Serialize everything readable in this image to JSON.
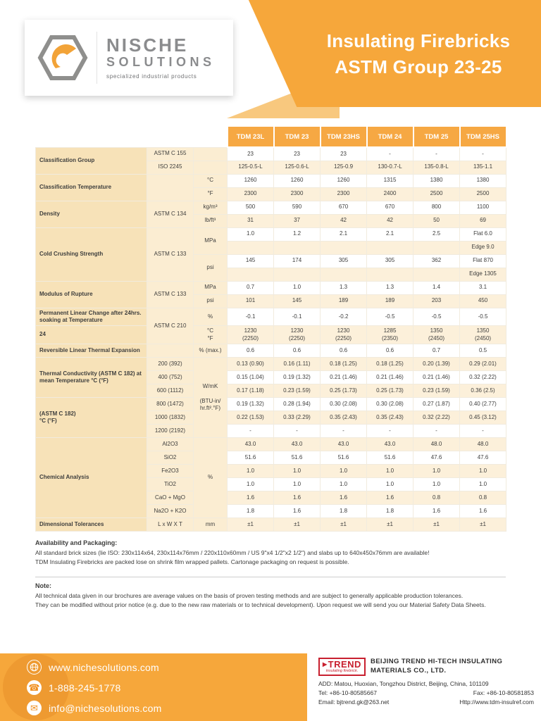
{
  "banner": {
    "title_line1": "Insulating Firebricks",
    "title_line2": "ASTM Group 23-25"
  },
  "logo": {
    "name_top": "NISCHE",
    "name_bottom": "SOLUTIONS",
    "tagline": "specialized industrial products"
  },
  "colors": {
    "orange": "#F6A73B",
    "orange_light": "#F8C87E",
    "orange_dark": "#EE9A31",
    "table_header": "#F6A843",
    "label_bg": "#F7E2B8",
    "std_bg": "#FBEDD2",
    "stripe_bg": "#FCF0DA",
    "trend_red": "#C8202F"
  },
  "table": {
    "products": [
      "TDM 23L",
      "TDM 23",
      "TDM 23HS",
      "TDM 24",
      "TDM 25",
      "TDM 25HS"
    ],
    "rows": [
      {
        "cells": [
          {
            "t": "Classification Group",
            "rs": 2
          },
          {
            "t": "ASTM C 155"
          },
          {
            "t": ""
          },
          {
            "t": "23"
          },
          {
            "t": "23"
          },
          {
            "t": "23"
          },
          {
            "t": "-"
          },
          {
            "t": "-"
          },
          {
            "t": "-"
          }
        ]
      },
      {
        "cells": [
          {
            "t": "ISO 2245"
          },
          {
            "t": ""
          },
          {
            "t": "125-0.5-L"
          },
          {
            "t": "125-0.6-L"
          },
          {
            "t": "125-0.9"
          },
          {
            "t": "130-0.7-L"
          },
          {
            "t": "135-0.8-L"
          },
          {
            "t": "135-1.1"
          }
        ]
      },
      {
        "cells": [
          {
            "t": "Classification Temperature",
            "rs": 2
          },
          {
            "t": "",
            "rs": 2
          },
          {
            "t": "°C"
          },
          {
            "t": "1260"
          },
          {
            "t": "1260"
          },
          {
            "t": "1260"
          },
          {
            "t": "1315"
          },
          {
            "t": "1380"
          },
          {
            "t": "1380"
          }
        ]
      },
      {
        "cells": [
          {
            "t": "°F"
          },
          {
            "t": "2300"
          },
          {
            "t": "2300"
          },
          {
            "t": "2300"
          },
          {
            "t": "2400"
          },
          {
            "t": "2500"
          },
          {
            "t": "2500"
          }
        ]
      },
      {
        "cells": [
          {
            "t": "Density",
            "rs": 2
          },
          {
            "t": "ASTM C 134",
            "rs": 2
          },
          {
            "t": "kg/m³"
          },
          {
            "t": "500"
          },
          {
            "t": "590"
          },
          {
            "t": "670"
          },
          {
            "t": "670"
          },
          {
            "t": "800"
          },
          {
            "t": "1100"
          }
        ]
      },
      {
        "cells": [
          {
            "t": "lb/ft³"
          },
          {
            "t": "31"
          },
          {
            "t": "37"
          },
          {
            "t": "42"
          },
          {
            "t": "42"
          },
          {
            "t": "50"
          },
          {
            "t": "69"
          }
        ]
      },
      {
        "cells": [
          {
            "t": "Cold Crushing Strength",
            "rs": 4
          },
          {
            "t": "ASTM C 133",
            "rs": 4
          },
          {
            "t": "MPa",
            "rs": 2
          },
          {
            "t": "1.0"
          },
          {
            "t": "1.2"
          },
          {
            "t": "2.1"
          },
          {
            "t": "2.1"
          },
          {
            "t": "2.5"
          },
          {
            "t": "Flat 6.0"
          }
        ]
      },
      {
        "cells": [
          {
            "t": ""
          },
          {
            "t": ""
          },
          {
            "t": ""
          },
          {
            "t": ""
          },
          {
            "t": ""
          },
          {
            "t": "Edge 9.0"
          }
        ]
      },
      {
        "cells": [
          {
            "t": "psi",
            "rs": 2
          },
          {
            "t": "145"
          },
          {
            "t": "174"
          },
          {
            "t": "305"
          },
          {
            "t": "305"
          },
          {
            "t": "362"
          },
          {
            "t": "Flat 870"
          }
        ]
      },
      {
        "cells": [
          {
            "t": ""
          },
          {
            "t": ""
          },
          {
            "t": ""
          },
          {
            "t": ""
          },
          {
            "t": ""
          },
          {
            "t": "Edge 1305"
          }
        ]
      },
      {
        "cells": [
          {
            "t": "Modulus of Rupture",
            "rs": 2
          },
          {
            "t": "ASTM C 133",
            "rs": 2
          },
          {
            "t": "MPa"
          },
          {
            "t": "0.7"
          },
          {
            "t": "1.0"
          },
          {
            "t": "1.3"
          },
          {
            "t": "1.3"
          },
          {
            "t": "1.4"
          },
          {
            "t": "3.1"
          }
        ]
      },
      {
        "cells": [
          {
            "t": "psi"
          },
          {
            "t": "101"
          },
          {
            "t": "145"
          },
          {
            "t": "189"
          },
          {
            "t": "189"
          },
          {
            "t": "203"
          },
          {
            "t": "450"
          }
        ]
      },
      {
        "cells": [
          {
            "t": "Permanent Linear Change after 24hrs. soaking at Temperature"
          },
          {
            "t": "ASTM C 210",
            "rs": 2
          },
          {
            "t": "%"
          },
          {
            "t": "-0.1"
          },
          {
            "t": "-0.1"
          },
          {
            "t": "-0.2"
          },
          {
            "t": "-0.5"
          },
          {
            "t": "-0.5"
          },
          {
            "t": "-0.5"
          }
        ]
      },
      {
        "cells": [
          {
            "t": "24"
          },
          {
            "t": [
              "°C",
              "°F"
            ]
          },
          {
            "t": [
              "1230",
              "(2250)"
            ]
          },
          {
            "t": [
              "1230",
              "(2250)"
            ]
          },
          {
            "t": [
              "1230",
              "(2250)"
            ]
          },
          {
            "t": [
              "1285",
              "(2350)"
            ]
          },
          {
            "t": [
              "1350",
              "(2450)"
            ]
          },
          {
            "t": [
              "1350",
              "(2450)"
            ]
          }
        ]
      },
      {
        "cells": [
          {
            "t": "Reversible Linear Thermal Expansion"
          },
          {
            "t": ""
          },
          {
            "t": "% (max.)"
          },
          {
            "t": "0.6"
          },
          {
            "t": "0.6"
          },
          {
            "t": "0.6"
          },
          {
            "t": "0.6"
          },
          {
            "t": "0.7"
          },
          {
            "t": "0.5"
          }
        ]
      },
      {
        "cells": [
          {
            "t": "Thermal Conductivity (ASTM C 182) at mean Temperature °C (°F)",
            "rs": 3
          },
          {
            "t": "200 (392)"
          },
          {
            "t": [
              "W/mK",
              "",
              "(BTU-in/",
              "hr.ft².°F)"
            ],
            "rs": 6
          },
          {
            "t": "0.13 (0.90)"
          },
          {
            "t": "0.16 (1.11)"
          },
          {
            "t": "0.18 (1.25)"
          },
          {
            "t": "0.18 (1.25)"
          },
          {
            "t": "0.20 (1.39)"
          },
          {
            "t": "0.29 (2.01)"
          }
        ]
      },
      {
        "cells": [
          {
            "t": "400 (752)"
          },
          {
            "t": "0.15 (1.04)"
          },
          {
            "t": "0.19 (1.32)"
          },
          {
            "t": "0.21 (1.46)"
          },
          {
            "t": "0.21 (1.46)"
          },
          {
            "t": "0.21 (1.46)"
          },
          {
            "t": "0.32 (2.22)"
          }
        ]
      },
      {
        "cells": [
          {
            "t": "600 (1112)"
          },
          {
            "t": "0.17 (1.18)"
          },
          {
            "t": "0.23 (1.59)"
          },
          {
            "t": "0.25 (1.73)"
          },
          {
            "t": "0.25 (1.73)"
          },
          {
            "t": "0.23 (1.59)"
          },
          {
            "t": "0.36 (2.5)"
          }
        ]
      },
      {
        "cells": [
          {
            "t": [
              "(ASTM C 182)",
              "°C (°F)"
            ],
            "rs": 3
          },
          {
            "t": "800 (1472)"
          },
          {
            "t": "0.19 (1.32)"
          },
          {
            "t": "0.28 (1.94)"
          },
          {
            "t": "0.30 (2.08)"
          },
          {
            "t": "0.30 (2.08)"
          },
          {
            "t": "0.27 (1.87)"
          },
          {
            "t": "0.40 (2.77)"
          }
        ]
      },
      {
        "cells": [
          {
            "t": "1000 (1832)"
          },
          {
            "t": "0.22 (1.53)"
          },
          {
            "t": "0.33 (2.29)"
          },
          {
            "t": "0.35 (2.43)"
          },
          {
            "t": "0.35 (2.43)"
          },
          {
            "t": "0.32 (2.22)"
          },
          {
            "t": "0.45 (3.12)"
          }
        ]
      },
      {
        "cells": [
          {
            "t": "1200 (2192)"
          },
          {
            "t": "-"
          },
          {
            "t": "-"
          },
          {
            "t": "-"
          },
          {
            "t": "-"
          },
          {
            "t": "-"
          },
          {
            "t": "-"
          }
        ]
      },
      {
        "cells": [
          {
            "t": "Chemical Analysis",
            "rs": 6
          },
          {
            "t": "Al2O3"
          },
          {
            "t": "%",
            "rs": 6
          },
          {
            "t": "43.0"
          },
          {
            "t": "43.0"
          },
          {
            "t": "43.0"
          },
          {
            "t": "43.0"
          },
          {
            "t": "48.0"
          },
          {
            "t": "48.0"
          }
        ]
      },
      {
        "cells": [
          {
            "t": "SiO2"
          },
          {
            "t": "51.6"
          },
          {
            "t": "51.6"
          },
          {
            "t": "51.6"
          },
          {
            "t": "51.6"
          },
          {
            "t": "47.6"
          },
          {
            "t": "47.6"
          }
        ]
      },
      {
        "cells": [
          {
            "t": "Fe2O3"
          },
          {
            "t": "1.0"
          },
          {
            "t": "1.0"
          },
          {
            "t": "1.0"
          },
          {
            "t": "1.0"
          },
          {
            "t": "1.0"
          },
          {
            "t": "1.0"
          }
        ]
      },
      {
        "cells": [
          {
            "t": "TiO2"
          },
          {
            "t": "1.0"
          },
          {
            "t": "1.0"
          },
          {
            "t": "1.0"
          },
          {
            "t": "1.0"
          },
          {
            "t": "1.0"
          },
          {
            "t": "1.0"
          }
        ]
      },
      {
        "cells": [
          {
            "t": "CaO + MgO"
          },
          {
            "t": "1.6"
          },
          {
            "t": "1.6"
          },
          {
            "t": "1.6"
          },
          {
            "t": "1.6"
          },
          {
            "t": "0.8"
          },
          {
            "t": "0.8"
          }
        ]
      },
      {
        "cells": [
          {
            "t": "Na2O + K2O"
          },
          {
            "t": "1.8"
          },
          {
            "t": "1.6"
          },
          {
            "t": "1.8"
          },
          {
            "t": "1.8"
          },
          {
            "t": "1.6"
          },
          {
            "t": "1.6"
          }
        ]
      },
      {
        "cells": [
          {
            "t": "Dimensional Tolerances"
          },
          {
            "t": "L x W X T"
          },
          {
            "t": "mm"
          },
          {
            "t": "±1"
          },
          {
            "t": "±1"
          },
          {
            "t": "±1"
          },
          {
            "t": "±1"
          },
          {
            "t": "±1"
          },
          {
            "t": "±1"
          }
        ]
      }
    ]
  },
  "availability": {
    "title": "Availability and Packaging:",
    "line1": "All standard brick sizes (lie ISO: 230x114x64, 230x114x76mm / 220x110x60mm / US 9\"x4 1/2\"x2 1/2\") and slabs up to 640x450x76mm are available!",
    "line2": "TDM Insulating Firebricks are packed lose on shrink film wrapped pallets. Cartonage packaging on request is possible."
  },
  "note": {
    "title": "Note:",
    "line1": "All technical data given in our brochures are average values on the basis of proven testing methods and are subject to generally applicable production tolerances.",
    "line2": "They can be modified without prior notice (e.g. due to the new raw materials or to technical development). Upon request we will send you our Material Safety Data Sheets."
  },
  "contacts": [
    {
      "icon": "globe-icon",
      "text": "www.nichesolutions.com"
    },
    {
      "icon": "phone-icon",
      "text": "1-888-245-1778"
    },
    {
      "icon": "mail-icon",
      "text": "info@nichesolutions.com"
    }
  ],
  "company": {
    "logo_text": "TREND",
    "logo_sub": "insulating firebrick.",
    "name_line1": "BEIJING TREND HI-TECH INSULATING",
    "name_line2": "MATERIALS CO., LTD.",
    "address": "ADD: Matou, Huoxian, Tongzhou District, Beijing, China, 101109",
    "tel": "Tel: +86-10-80585667",
    "fax": "Fax: +86-10-80581853",
    "email": "Email: bjtrend.gk@263.net",
    "web": "Http://www.tdm-insulref.com"
  }
}
